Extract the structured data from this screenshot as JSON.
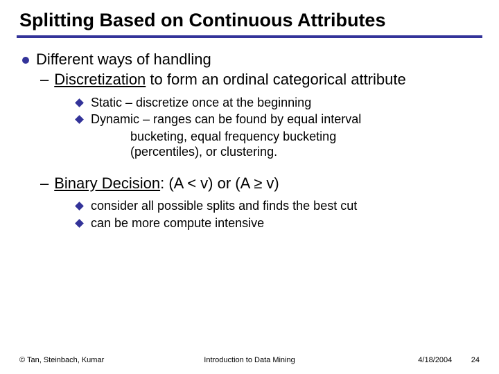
{
  "title": "Splitting Based on Continuous Attributes",
  "l1": "Different ways of handling",
  "l2a_u": "Discretization",
  "l2a_rest": " to form an ordinal categorical attribute",
  "l3a": "Static – discretize once at the beginning",
  "l3b": "Dynamic – ranges can be found by equal interval",
  "l3b_cont1": "bucketing, equal frequency bucketing",
  "l3b_cont2": "(percentiles), or clustering.",
  "l2b_u": "Binary Decision",
  "l2b_rest": ": (A < v) or (A ≥ v)",
  "l3c": "consider all possible splits and finds the best cut",
  "l3d": "can be more compute intensive",
  "footer_left": "© Tan, Steinbach, Kumar",
  "footer_center": "Introduction to Data Mining",
  "footer_date": "4/18/2004",
  "footer_page": "24",
  "colors": {
    "accent": "#333399",
    "text": "#000000",
    "background": "#ffffff"
  }
}
